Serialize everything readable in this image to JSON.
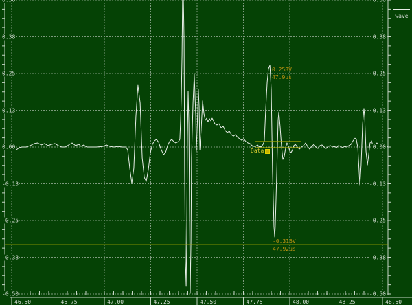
{
  "legend": {
    "label": "wave"
  },
  "colors": {
    "background": "#054205",
    "grid": "#7d9a7d",
    "axis": "#c6d6c6",
    "tick_text": "#d4ddd4",
    "trace": "#e6ede6",
    "cursor_line": "#a8a800",
    "cursor_text": "#bf9412",
    "cursor_label": "#d8cc30",
    "legend_text": "#cfd6cf"
  },
  "chart_data": {
    "type": "line",
    "title": "",
    "xlabel": "",
    "ylabel": "",
    "grid": true,
    "legend_position": "top-right",
    "x_axis": {
      "min": 46.5,
      "max": 48.5,
      "tick_values": [
        46.5,
        46.75,
        47.0,
        47.25,
        47.5,
        47.75,
        48.0,
        48.25,
        48.5
      ],
      "tick_labels": [
        "46.50",
        "46.75",
        "47.00",
        "47.25",
        "47.50",
        "47.75",
        "48.00",
        "48.25",
        "48.50"
      ],
      "minor_step": 0.05
    },
    "y_axis": {
      "min": -0.5,
      "max": 0.5,
      "tick_values": [
        0.5,
        0.375,
        0.25,
        0.125,
        0.0,
        -0.125,
        -0.25,
        -0.375,
        -0.5
      ],
      "tick_labels": [
        "0.50",
        "0.38",
        "0.25",
        "0.13",
        "0.00",
        "-0.13",
        "-0.25",
        "-0.38",
        "-0.50"
      ],
      "minor_step": 0.03125
    },
    "cursors": {
      "annotation_top": {
        "value": "0.258V",
        "time": "47.9us"
      },
      "annotation_bottom": {
        "value": "-0.316V",
        "time": "47.92us"
      },
      "cursor_label": "Data",
      "hline_full_v": -0.332,
      "hline_pair": {
        "v1": 0.019,
        "v2": -0.002,
        "t_start": 47.815,
        "t_end": 48.059
      }
    },
    "series": [
      {
        "name": "wave",
        "points": [
          [
            46.463,
            0.002
          ],
          [
            46.481,
            0.007
          ],
          [
            46.496,
            0.0
          ],
          [
            46.511,
            -0.007
          ],
          [
            46.526,
            -0.009
          ],
          [
            46.541,
            -0.002
          ],
          [
            46.556,
            0.0
          ],
          [
            46.578,
            0.0
          ],
          [
            46.6,
            0.005
          ],
          [
            46.622,
            0.012
          ],
          [
            46.641,
            0.014
          ],
          [
            46.659,
            0.007
          ],
          [
            46.678,
            0.012
          ],
          [
            46.696,
            0.005
          ],
          [
            46.715,
            0.009
          ],
          [
            46.733,
            0.012
          ],
          [
            46.752,
            0.005
          ],
          [
            46.77,
            0.0
          ],
          [
            46.789,
            0.0
          ],
          [
            46.807,
            0.007
          ],
          [
            46.826,
            0.014
          ],
          [
            46.844,
            0.005
          ],
          [
            46.863,
            0.009
          ],
          [
            46.874,
            0.002
          ],
          [
            46.889,
            0.007
          ],
          [
            46.904,
            0.0
          ],
          [
            46.919,
            0.0
          ],
          [
            46.956,
            0.0
          ],
          [
            46.993,
            0.002
          ],
          [
            47.011,
            0.007
          ],
          [
            47.03,
            0.002
          ],
          [
            47.052,
            0.0
          ],
          [
            47.074,
            0.002
          ],
          [
            47.096,
            0.0
          ],
          [
            47.115,
            0.0
          ],
          [
            47.126,
            -0.009
          ],
          [
            47.137,
            -0.072
          ],
          [
            47.148,
            -0.124
          ],
          [
            47.159,
            -0.072
          ],
          [
            47.17,
            0.103
          ],
          [
            47.181,
            0.21
          ],
          [
            47.193,
            0.15
          ],
          [
            47.204,
            -0.037
          ],
          [
            47.215,
            -0.103
          ],
          [
            47.226,
            -0.117
          ],
          [
            47.237,
            -0.077
          ],
          [
            47.248,
            -0.019
          ],
          [
            47.259,
            0.009
          ],
          [
            47.27,
            0.021
          ],
          [
            47.281,
            0.026
          ],
          [
            47.293,
            0.016
          ],
          [
            47.304,
            -0.005
          ],
          [
            47.319,
            -0.026
          ],
          [
            47.33,
            -0.019
          ],
          [
            47.341,
            0.005
          ],
          [
            47.352,
            0.019
          ],
          [
            47.363,
            0.026
          ],
          [
            47.374,
            0.019
          ],
          [
            47.385,
            0.014
          ],
          [
            47.4,
            0.019
          ],
          [
            47.407,
            0.026
          ],
          [
            47.411,
            0.091
          ],
          [
            47.415,
            0.166
          ],
          [
            47.419,
            0.313
          ],
          [
            47.422,
            0.514
          ],
          [
            47.426,
            0.514
          ],
          [
            47.43,
            0.36
          ],
          [
            47.433,
            -0.084
          ],
          [
            47.437,
            -0.388
          ],
          [
            47.441,
            -0.474
          ],
          [
            47.444,
            -0.318
          ],
          [
            47.448,
            0.033
          ],
          [
            47.452,
            0.189
          ],
          [
            47.456,
            0.079
          ],
          [
            47.459,
            -0.201
          ],
          [
            47.463,
            -0.498
          ],
          [
            47.467,
            -0.318
          ],
          [
            47.47,
            -0.037
          ],
          [
            47.478,
            0.15
          ],
          [
            47.485,
            0.248
          ],
          [
            47.493,
            0.103
          ],
          [
            47.496,
            -0.014
          ],
          [
            47.504,
            0.126
          ],
          [
            47.507,
            0.196
          ],
          [
            47.511,
            0.138
          ],
          [
            47.515,
            -0.009
          ],
          [
            47.522,
            0.056
          ],
          [
            47.53,
            0.157
          ],
          [
            47.537,
            0.114
          ],
          [
            47.544,
            0.091
          ],
          [
            47.552,
            0.098
          ],
          [
            47.559,
            0.086
          ],
          [
            47.567,
            0.096
          ],
          [
            47.574,
            0.089
          ],
          [
            47.581,
            0.098
          ],
          [
            47.589,
            0.089
          ],
          [
            47.596,
            0.079
          ],
          [
            47.607,
            0.075
          ],
          [
            47.619,
            0.079
          ],
          [
            47.63,
            0.065
          ],
          [
            47.641,
            0.07
          ],
          [
            47.652,
            0.056
          ],
          [
            47.663,
            0.049
          ],
          [
            47.674,
            0.054
          ],
          [
            47.685,
            0.042
          ],
          [
            47.696,
            0.037
          ],
          [
            47.707,
            0.042
          ],
          [
            47.719,
            0.033
          ],
          [
            47.73,
            0.028
          ],
          [
            47.741,
            0.023
          ],
          [
            47.752,
            0.028
          ],
          [
            47.763,
            0.019
          ],
          [
            47.774,
            0.014
          ],
          [
            47.785,
            0.012
          ],
          [
            47.796,
            0.005
          ],
          [
            47.807,
            0.002
          ],
          [
            47.815,
            0.002
          ],
          [
            47.826,
            0.007
          ],
          [
            47.837,
            0.0
          ],
          [
            47.848,
            0.002
          ],
          [
            47.856,
            0.009
          ],
          [
            47.863,
            0.021
          ],
          [
            47.87,
            0.126
          ],
          [
            47.878,
            0.22
          ],
          [
            47.885,
            0.266
          ],
          [
            47.893,
            0.278
          ],
          [
            47.9,
            0.196
          ],
          [
            47.907,
            -0.084
          ],
          [
            47.915,
            -0.271
          ],
          [
            47.919,
            -0.306
          ],
          [
            47.922,
            -0.271
          ],
          [
            47.93,
            -0.084
          ],
          [
            47.937,
            0.091
          ],
          [
            47.941,
            0.119
          ],
          [
            47.948,
            0.068
          ],
          [
            47.956,
            -0.002
          ],
          [
            47.963,
            -0.042
          ],
          [
            47.97,
            -0.033
          ],
          [
            47.978,
            -0.002
          ],
          [
            47.985,
            0.014
          ],
          [
            47.993,
            0.002
          ],
          [
            48.0,
            -0.014
          ],
          [
            48.007,
            -0.019
          ],
          [
            48.015,
            -0.009
          ],
          [
            48.022,
            0.005
          ],
          [
            48.03,
            0.009
          ],
          [
            48.041,
            0.0
          ],
          [
            48.052,
            -0.007
          ],
          [
            48.063,
            0.0
          ],
          [
            48.074,
            0.005
          ],
          [
            48.085,
            0.014
          ],
          [
            48.096,
            0.002
          ],
          [
            48.107,
            -0.007
          ],
          [
            48.119,
            0.002
          ],
          [
            48.13,
            0.009
          ],
          [
            48.141,
            0.0
          ],
          [
            48.152,
            -0.005
          ],
          [
            48.163,
            0.005
          ],
          [
            48.174,
            0.007
          ],
          [
            48.185,
            0.0
          ],
          [
            48.196,
            -0.005
          ],
          [
            48.207,
            0.002
          ],
          [
            48.219,
            0.005
          ],
          [
            48.23,
            0.0
          ],
          [
            48.241,
            0.002
          ],
          [
            48.252,
            -0.002
          ],
          [
            48.263,
            0.005
          ],
          [
            48.274,
            0.002
          ],
          [
            48.285,
            -0.002
          ],
          [
            48.296,
            0.002
          ],
          [
            48.307,
            0.0
          ],
          [
            48.319,
            0.005
          ],
          [
            48.33,
            0.009
          ],
          [
            48.341,
            0.021
          ],
          [
            48.352,
            0.03
          ],
          [
            48.359,
            0.026
          ],
          [
            48.367,
            -0.002
          ],
          [
            48.374,
            -0.084
          ],
          [
            48.378,
            -0.131
          ],
          [
            48.385,
            -0.061
          ],
          [
            48.393,
            0.079
          ],
          [
            48.4,
            0.131
          ],
          [
            48.404,
            0.103
          ],
          [
            48.411,
            -0.014
          ],
          [
            48.419,
            -0.061
          ],
          [
            48.426,
            -0.026
          ],
          [
            48.433,
            0.014
          ],
          [
            48.441,
            0.021
          ],
          [
            48.448,
            0.005
          ],
          [
            48.456,
            -0.009
          ],
          [
            48.463,
            0.005
          ],
          [
            48.47,
            0.014
          ],
          [
            48.478,
            0.007
          ],
          [
            48.485,
            0.0
          ],
          [
            48.496,
            0.002
          ],
          [
            48.504,
            0.005
          ],
          [
            48.511,
            0.0
          ],
          [
            48.519,
            0.002
          ],
          [
            48.53,
            0.002
          ]
        ]
      }
    ]
  }
}
